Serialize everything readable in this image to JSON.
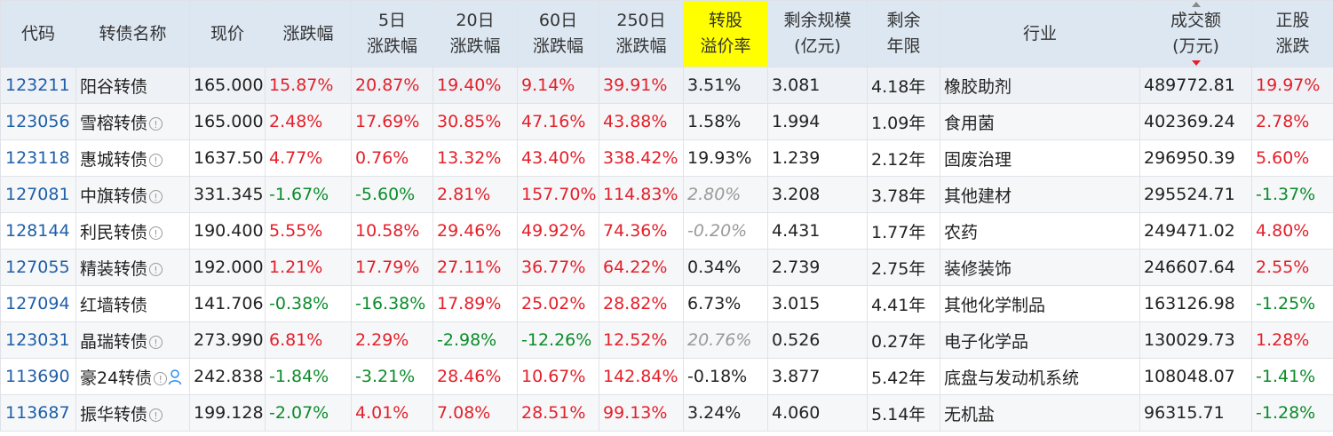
{
  "headers": [
    {
      "key": "code",
      "lines": [
        "代码"
      ]
    },
    {
      "key": "name",
      "lines": [
        "转债名称"
      ]
    },
    {
      "key": "price",
      "lines": [
        "现价"
      ]
    },
    {
      "key": "chg",
      "lines": [
        "涨跌幅"
      ]
    },
    {
      "key": "chg5",
      "lines": [
        "5日",
        "涨跌幅"
      ]
    },
    {
      "key": "chg20",
      "lines": [
        "20日",
        "涨跌幅"
      ]
    },
    {
      "key": "chg60",
      "lines": [
        "60日",
        "涨跌幅"
      ]
    },
    {
      "key": "chg250",
      "lines": [
        "250日",
        "涨跌幅"
      ]
    },
    {
      "key": "premium",
      "lines": [
        "转股",
        "溢价率"
      ]
    },
    {
      "key": "size",
      "lines": [
        "剩余规模",
        "(亿元)"
      ]
    },
    {
      "key": "years",
      "lines": [
        "剩余",
        "年限"
      ]
    },
    {
      "key": "industry",
      "lines": [
        "行业"
      ]
    },
    {
      "key": "turnover",
      "lines": [
        "成交额",
        "(万元)"
      ]
    },
    {
      "key": "stock_chg",
      "lines": [
        "正股",
        "涨跌"
      ]
    }
  ],
  "colors": {
    "up": "#e4202a",
    "down": "#0b8c2a",
    "code": "#1f5fa8",
    "highlight": "#ffff00"
  },
  "rows": [
    {
      "code": "123211",
      "name": "阳谷转债",
      "info": false,
      "user": false,
      "price": "165.000",
      "chg": "15.87%",
      "chg5": "20.87%",
      "chg20": "19.40%",
      "chg60": "9.14%",
      "chg250": "39.91%",
      "premium": "3.51%",
      "premium_italic": false,
      "size": "3.081",
      "years": "4.18年",
      "industry": "橡胶助剂",
      "turnover": "489772.81",
      "stock_chg": "19.97%"
    },
    {
      "code": "123056",
      "name": "雪榕转债",
      "info": true,
      "user": false,
      "price": "165.000",
      "chg": "2.48%",
      "chg5": "17.69%",
      "chg20": "30.85%",
      "chg60": "47.16%",
      "chg250": "43.88%",
      "premium": "1.58%",
      "premium_italic": false,
      "size": "1.994",
      "years": "1.09年",
      "industry": "食用菌",
      "turnover": "402369.24",
      "stock_chg": "2.78%"
    },
    {
      "code": "123118",
      "name": "惠城转债",
      "info": true,
      "user": false,
      "price": "1637.50",
      "chg": "4.77%",
      "chg5": "0.76%",
      "chg20": "13.32%",
      "chg60": "43.40%",
      "chg250": "338.42%",
      "premium": "19.93%",
      "premium_italic": false,
      "size": "1.239",
      "years": "2.12年",
      "industry": "固废治理",
      "turnover": "296950.39",
      "stock_chg": "5.60%"
    },
    {
      "code": "127081",
      "name": "中旗转债",
      "info": true,
      "user": false,
      "price": "331.345",
      "chg": "-1.67%",
      "chg5": "-5.60%",
      "chg20": "2.81%",
      "chg60": "157.70%",
      "chg250": "114.83%",
      "premium": "2.80%",
      "premium_italic": true,
      "size": "3.208",
      "years": "3.78年",
      "industry": "其他建材",
      "turnover": "295524.71",
      "stock_chg": "-1.37%"
    },
    {
      "code": "128144",
      "name": "利民转债",
      "info": true,
      "user": false,
      "price": "190.400",
      "chg": "5.55%",
      "chg5": "10.58%",
      "chg20": "29.46%",
      "chg60": "49.92%",
      "chg250": "74.36%",
      "premium": "-0.20%",
      "premium_italic": true,
      "size": "4.431",
      "years": "1.77年",
      "industry": "农药",
      "turnover": "249471.02",
      "stock_chg": "4.80%"
    },
    {
      "code": "127055",
      "name": "精装转债",
      "info": true,
      "user": false,
      "price": "192.000",
      "chg": "1.21%",
      "chg5": "17.79%",
      "chg20": "27.11%",
      "chg60": "36.77%",
      "chg250": "64.22%",
      "premium": "0.34%",
      "premium_italic": false,
      "size": "2.739",
      "years": "2.75年",
      "industry": "装修装饰",
      "turnover": "246607.64",
      "stock_chg": "2.55%"
    },
    {
      "code": "127094",
      "name": "红墙转债",
      "info": false,
      "user": false,
      "price": "141.706",
      "chg": "-0.38%",
      "chg5": "-16.38%",
      "chg20": "17.89%",
      "chg60": "25.02%",
      "chg250": "28.82%",
      "premium": "6.73%",
      "premium_italic": false,
      "size": "3.015",
      "years": "4.41年",
      "industry": "其他化学制品",
      "turnover": "163126.98",
      "stock_chg": "-1.25%"
    },
    {
      "code": "123031",
      "name": "晶瑞转债",
      "info": true,
      "user": false,
      "price": "273.990",
      "chg": "6.81%",
      "chg5": "2.29%",
      "chg20": "-2.98%",
      "chg60": "-12.26%",
      "chg250": "12.52%",
      "premium": "20.76%",
      "premium_italic": true,
      "size": "0.526",
      "years": "0.27年",
      "industry": "电子化学品",
      "turnover": "130029.73",
      "stock_chg": "1.28%"
    },
    {
      "code": "113690",
      "name": "豪24转债",
      "info": true,
      "user": true,
      "price": "242.838",
      "chg": "-1.84%",
      "chg5": "-3.21%",
      "chg20": "28.46%",
      "chg60": "10.67%",
      "chg250": "142.84%",
      "premium": "-0.18%",
      "premium_italic": false,
      "size": "3.877",
      "years": "5.42年",
      "industry": "底盘与发动机系统",
      "turnover": "108048.07",
      "stock_chg": "-1.41%"
    },
    {
      "code": "113687",
      "name": "振华转债",
      "info": true,
      "user": false,
      "price": "199.128",
      "chg": "-2.07%",
      "chg5": "4.01%",
      "chg20": "7.08%",
      "chg60": "28.51%",
      "chg250": "99.13%",
      "premium": "3.24%",
      "premium_italic": false,
      "size": "4.060",
      "years": "5.14年",
      "industry": "无机盐",
      "turnover": "96315.71",
      "stock_chg": "-1.28%"
    }
  ]
}
